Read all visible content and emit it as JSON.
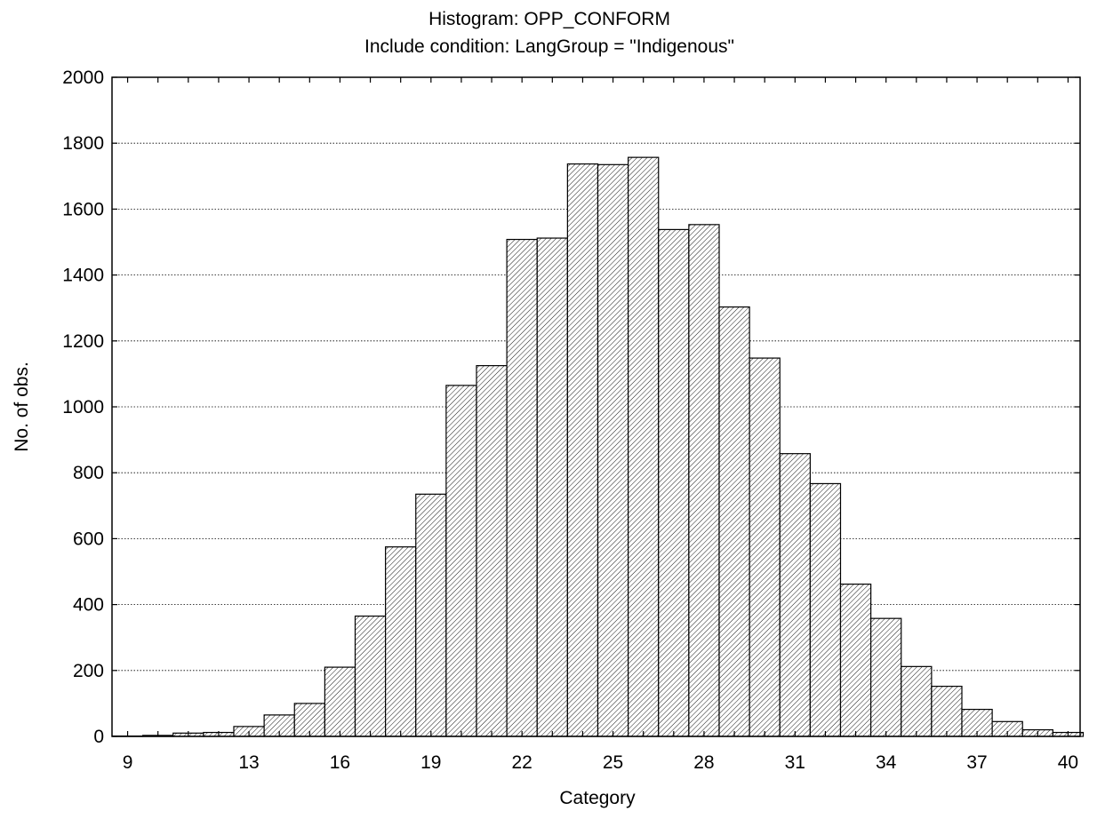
{
  "chart_data": {
    "type": "bar",
    "title": "Histogram: OPP_CONFORM",
    "subtitle": "Include condition: LangGroup = \"Indigenous\"",
    "xlabel": "Category",
    "ylabel": "No. of obs.",
    "ylim": [
      0,
      2000
    ],
    "yticks": [
      0,
      200,
      400,
      600,
      800,
      1000,
      1200,
      1400,
      1600,
      1800,
      2000
    ],
    "xticks": [
      9,
      13,
      16,
      19,
      22,
      25,
      28,
      31,
      34,
      37,
      40
    ],
    "x": [
      9,
      10,
      11,
      12,
      13,
      14,
      15,
      16,
      17,
      18,
      19,
      20,
      21,
      22,
      23,
      24,
      25,
      26,
      27,
      28,
      29,
      30,
      31,
      32,
      33,
      34,
      35,
      36,
      37,
      38,
      39,
      40
    ],
    "values": [
      1,
      3,
      10,
      12,
      30,
      65,
      100,
      210,
      365,
      575,
      735,
      1065,
      1125,
      1508,
      1512,
      1737,
      1735,
      1757,
      1538,
      1553,
      1303,
      1148,
      858,
      767,
      462,
      358,
      212,
      152,
      82,
      45,
      20,
      12
    ],
    "grid": "horizontal dotted",
    "bar_fill": "diagonal hatch",
    "colors": {
      "bar_stroke": "#000000",
      "hatch": "#000000",
      "background": "#ffffff"
    }
  }
}
